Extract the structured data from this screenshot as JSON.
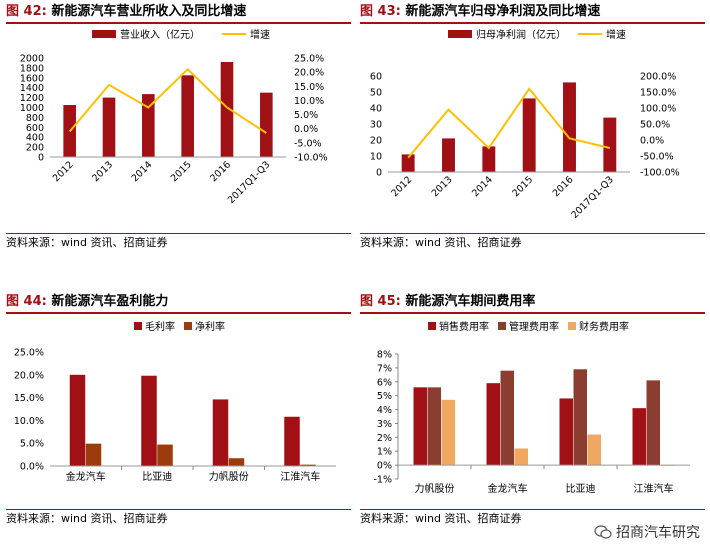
{
  "colors": {
    "accent": "#a01014",
    "bar_red": "#a01014",
    "line_yellow": "#ffc000",
    "bar_brown": "#8b3e2f",
    "bar_orange": "#f0a860",
    "bar_darkred": "#c00000"
  },
  "fig42": {
    "label": "图 42:",
    "title": "新能源汽车营业所收入及同比增速",
    "source": "资料来源：wind 资讯、招商证券"
  },
  "fig43": {
    "label": "图 43:",
    "title": "新能源汽车归母净利润及同比增速",
    "source": "资料来源：wind 资讯、招商证券"
  },
  "fig44": {
    "label": "图 44:",
    "title": "新能源汽车盈利能力",
    "source": "资料来源：wind 资讯、招商证券"
  },
  "fig45": {
    "label": "图 45:",
    "title": "新能源汽车期间费用率",
    "source": "资料来源：wind 资讯、招商证券"
  },
  "watermark": {
    "text": "招商汽车研究",
    "icon": "wechat-icon"
  },
  "chart_data": [
    {
      "type": "bar",
      "categories": [
        "2012",
        "2013",
        "2014",
        "2015",
        "2016",
        "2017Q1-Q3"
      ],
      "series": [
        {
          "name": "营业收入（亿元）",
          "type": "bar",
          "axis": "left",
          "values": [
            1050,
            1200,
            1270,
            1650,
            1920,
            1300
          ]
        },
        {
          "name": "增速",
          "type": "line",
          "axis": "right",
          "values": [
            -1,
            15.5,
            7.5,
            21,
            7.5,
            -1.5
          ]
        }
      ],
      "yleft": {
        "min": 0,
        "max": 2000,
        "step": 200,
        "ticks": [
          "0",
          "200",
          "400",
          "600",
          "800",
          "1000",
          "1200",
          "1400",
          "1600",
          "1800",
          "2000"
        ]
      },
      "yright": {
        "min": -10,
        "max": 25,
        "step": 5,
        "ticks": [
          "-10.0%",
          "-5.0%",
          "0.0%",
          "5.0%",
          "10.0%",
          "15.0%",
          "20.0%",
          "25.0%"
        ]
      },
      "legend": "top"
    },
    {
      "type": "bar",
      "categories": [
        "2012",
        "2013",
        "2014",
        "2015",
        "2016",
        "2017Q1-Q3"
      ],
      "series": [
        {
          "name": "归母净利润（亿元）",
          "type": "bar",
          "axis": "left",
          "values": [
            11,
            21,
            16,
            46,
            56,
            34
          ]
        },
        {
          "name": "增速",
          "type": "line",
          "axis": "right",
          "values": [
            -55,
            95,
            -25,
            160,
            5,
            -25
          ]
        }
      ],
      "yleft": {
        "min": 0,
        "max": 60,
        "step": 10,
        "ticks": [
          "0",
          "10",
          "20",
          "30",
          "40",
          "50",
          "60"
        ]
      },
      "yright": {
        "min": -100,
        "max": 200,
        "step": 50,
        "ticks": [
          "-100.0%",
          "-50.0%",
          "0.0%",
          "50.0%",
          "100.0%",
          "150.0%",
          "200.0%"
        ]
      },
      "legend": "top"
    },
    {
      "type": "bar",
      "categories": [
        "金龙汽车",
        "比亚迪",
        "力帆股份",
        "江淮汽车"
      ],
      "series": [
        {
          "name": "毛利率",
          "values": [
            20.0,
            19.8,
            14.6,
            10.8
          ]
        },
        {
          "name": "净利率",
          "values": [
            4.9,
            4.7,
            1.7,
            0.3
          ]
        }
      ],
      "y": {
        "min": 0,
        "max": 25,
        "step": 5,
        "ticks": [
          "0.0%",
          "5.0%",
          "10.0%",
          "15.0%",
          "20.0%",
          "25.0%"
        ]
      },
      "legend": "top"
    },
    {
      "type": "bar",
      "categories": [
        "力帆股份",
        "金龙汽车",
        "比亚迪",
        "江淮汽车"
      ],
      "series": [
        {
          "name": "销售费用率",
          "values": [
            5.6,
            5.9,
            4.8,
            4.1
          ]
        },
        {
          "name": "管理费用率",
          "values": [
            5.6,
            6.8,
            6.9,
            6.1
          ]
        },
        {
          "name": "财务费用率",
          "values": [
            4.7,
            1.2,
            2.2,
            -0.05
          ]
        }
      ],
      "y": {
        "min": -1,
        "max": 8,
        "step": 1,
        "ticks": [
          "-1%",
          "0%",
          "1%",
          "2%",
          "3%",
          "4%",
          "5%",
          "6%",
          "7%",
          "8%"
        ]
      },
      "legend": "top"
    }
  ]
}
